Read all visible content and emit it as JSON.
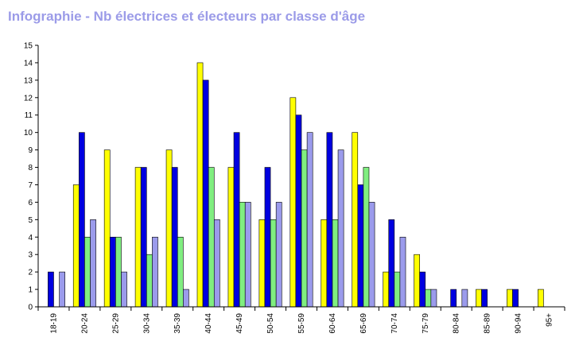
{
  "title": "Infographie - Nb électrices et électeurs par classe d'âge",
  "colors": {
    "title": "#9b9be8",
    "axis": "#000000",
    "bar_outline": "#000000"
  },
  "chart_data": {
    "type": "bar",
    "title": "Infographie - Nb électrices et électeurs par classe d'âge",
    "xlabel": "",
    "ylabel": "",
    "ylim": [
      0,
      15
    ],
    "yticks": [
      0,
      1,
      2,
      3,
      4,
      5,
      6,
      7,
      8,
      9,
      10,
      11,
      12,
      13,
      14,
      15
    ],
    "grid": false,
    "categories": [
      "18-19",
      "20-24",
      "25-29",
      "30-34",
      "35-39",
      "40-44",
      "45-49",
      "50-54",
      "55-59",
      "60-64",
      "65-69",
      "70-74",
      "75-79",
      "80-84",
      "85-89",
      "90-94",
      "95+"
    ],
    "series": [
      {
        "color": "#ffff00",
        "values": [
          0,
          7,
          9,
          8,
          9,
          14,
          8,
          5,
          12,
          5,
          10,
          2,
          3,
          0,
          1,
          1,
          1
        ]
      },
      {
        "color": "#0000e0",
        "values": [
          2,
          10,
          4,
          8,
          8,
          13,
          10,
          8,
          11,
          10,
          7,
          5,
          2,
          1,
          1,
          1,
          0
        ]
      },
      {
        "color": "#80ee80",
        "values": [
          0,
          4,
          4,
          3,
          4,
          8,
          6,
          5,
          9,
          5,
          8,
          2,
          1,
          0,
          0,
          0,
          0
        ]
      },
      {
        "color": "#9b9bec",
        "values": [
          2,
          5,
          2,
          4,
          1,
          5,
          6,
          6,
          10,
          9,
          6,
          4,
          1,
          1,
          0,
          0,
          0
        ]
      }
    ]
  }
}
